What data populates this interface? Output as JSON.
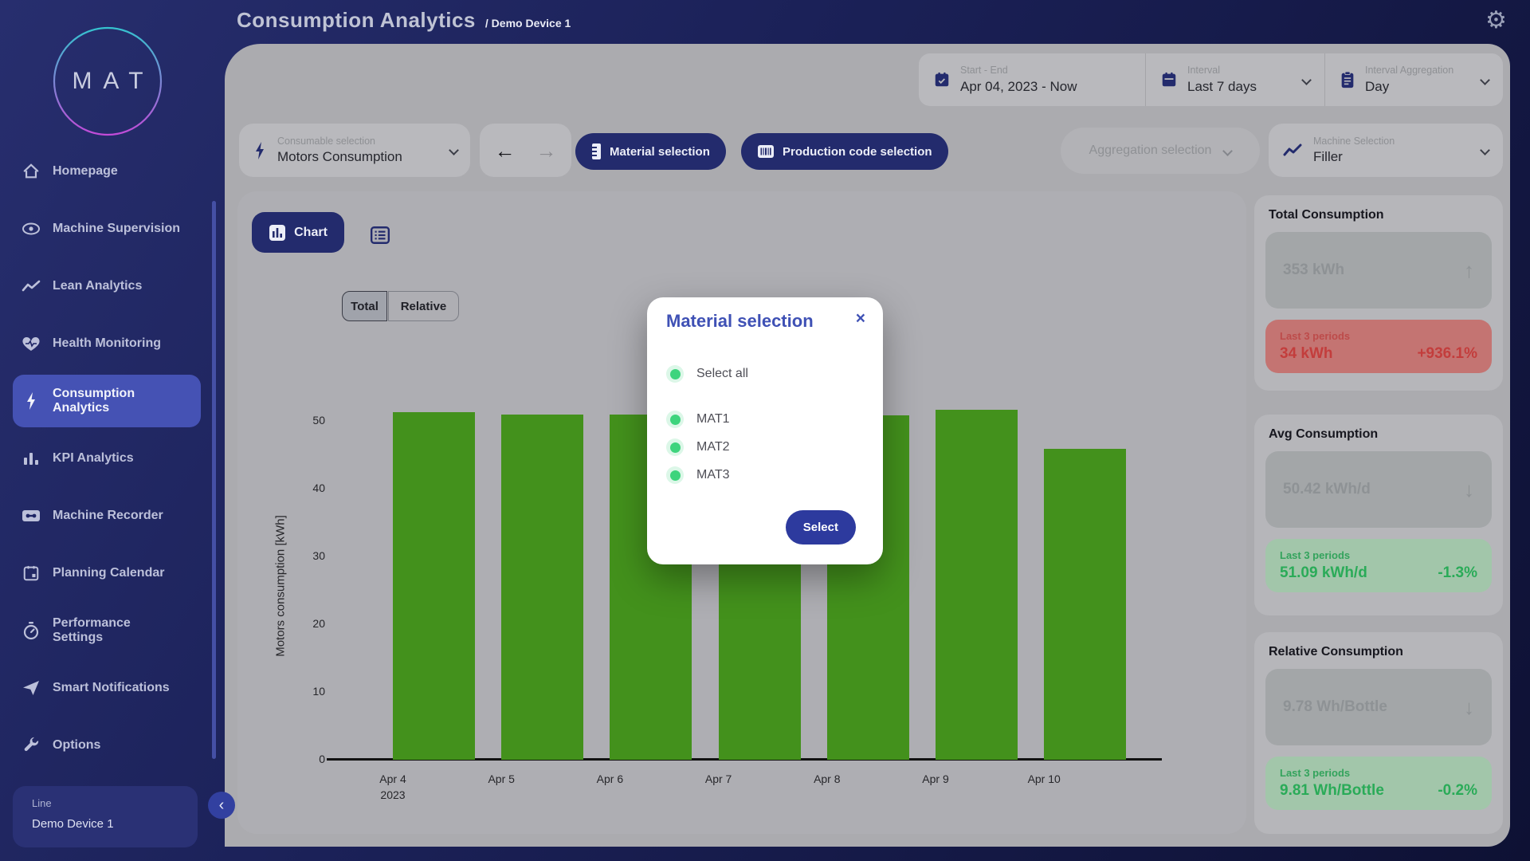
{
  "header": {
    "title": "Consumption Analytics",
    "breadcrumb": "/ Demo Device 1"
  },
  "icons": {
    "back": "←",
    "forward": "→",
    "close": "×",
    "collapse": "‹",
    "gear": "⚙",
    "trend_up": "↑",
    "trend_down": "↓"
  },
  "sidebar": {
    "logo": "MAT",
    "items": [
      {
        "label": "Homepage",
        "icon": "home-icon",
        "active": false
      },
      {
        "label": "Machine Supervision",
        "icon": "eye-icon",
        "active": false
      },
      {
        "label": "Lean Analytics",
        "icon": "trend-icon",
        "active": false
      },
      {
        "label": "Health Monitoring",
        "icon": "heart-icon",
        "active": false
      },
      {
        "label": "Consumption Analytics",
        "icon": "bolt-icon",
        "active": true
      },
      {
        "label": "KPI Analytics",
        "icon": "bar-chart-icon",
        "active": false
      },
      {
        "label": "Machine Recorder",
        "icon": "cassette-icon",
        "active": false
      },
      {
        "label": "Planning Calendar",
        "icon": "calendar-icon",
        "active": false
      },
      {
        "label": "Performance Settings",
        "icon": "stopwatch-icon",
        "active": false
      },
      {
        "label": "Smart Notifications",
        "icon": "send-icon",
        "active": false
      },
      {
        "label": "Options",
        "icon": "wrench-icon",
        "active": false
      }
    ],
    "device_panel": {
      "label": "Line",
      "value": "Demo Device 1"
    }
  },
  "topbar": {
    "start_end": {
      "label": "Start - End",
      "value": "Apr 04, 2023 - Now"
    },
    "interval": {
      "label": "Interval",
      "value": "Last 7 days"
    },
    "aggregation": {
      "label": "Interval Aggregation",
      "value": "Day"
    }
  },
  "controls": {
    "consumable": {
      "label": "Consumable selection",
      "value": "Motors Consumption"
    },
    "material_button": "Material selection",
    "production_button": "Production code selection",
    "aggregation_button": "Aggregation selection",
    "machine": {
      "label": "Machine Selection",
      "value": "Filler"
    },
    "chart_button": "Chart",
    "toggle": {
      "total": "Total",
      "relative": "Relative"
    }
  },
  "chart_data": {
    "type": "bar",
    "ylabel": "Motors consumption [kWh]",
    "categories": [
      "Apr 4 2023",
      "Apr 5",
      "Apr 6",
      "Apr 7",
      "Apr 8",
      "Apr 9",
      "Apr 10"
    ],
    "xlabels": [
      [
        "Apr 4",
        "2023"
      ],
      [
        "Apr 5"
      ],
      [
        "Apr 6"
      ],
      [
        "Apr 7"
      ],
      [
        "Apr 8"
      ],
      [
        "Apr 9"
      ],
      [
        "Apr 10"
      ]
    ],
    "values": [
      51.3,
      51.0,
      51.0,
      51.0,
      50.8,
      51.6,
      45.9
    ],
    "yticks": [
      0,
      10,
      20,
      30,
      40,
      50
    ],
    "ylim": [
      0,
      55
    ],
    "bar_color": "#43911c",
    "grid": false,
    "legend": "none"
  },
  "stats": {
    "total": {
      "title": "Total Consumption",
      "value": "353 kWh",
      "arrow": "↑",
      "trend_label": "Last 3 periods",
      "trend_value": "34 kWh",
      "trend_pct": "+936.1%",
      "trend_color": "#c33d3c"
    },
    "avg": {
      "title": "Avg Consumption",
      "value": "50.42 kWh/d",
      "arrow": "↓",
      "trend_label": "Last 3 periods",
      "trend_value": "51.09 kWh/d",
      "trend_pct": "-1.3%",
      "trend_color": "#2aab58"
    },
    "relative": {
      "title": "Relative Consumption",
      "value": "9.78 Wh/Bottle",
      "arrow": "↓",
      "trend_label": "Last 3 periods",
      "trend_value": "9.81 Wh/Bottle",
      "trend_pct": "-0.2%",
      "trend_color": "#2aab58"
    }
  },
  "modal": {
    "title": "Material selection",
    "select_all": "Select all",
    "options": [
      "MAT1",
      "MAT2",
      "MAT3"
    ],
    "submit": "Select"
  },
  "colors": {
    "accent_indigo": "#3f51b5",
    "bar_green": "#43911c",
    "ok_green": "#2aab58",
    "alert_red": "#c33d3c"
  }
}
